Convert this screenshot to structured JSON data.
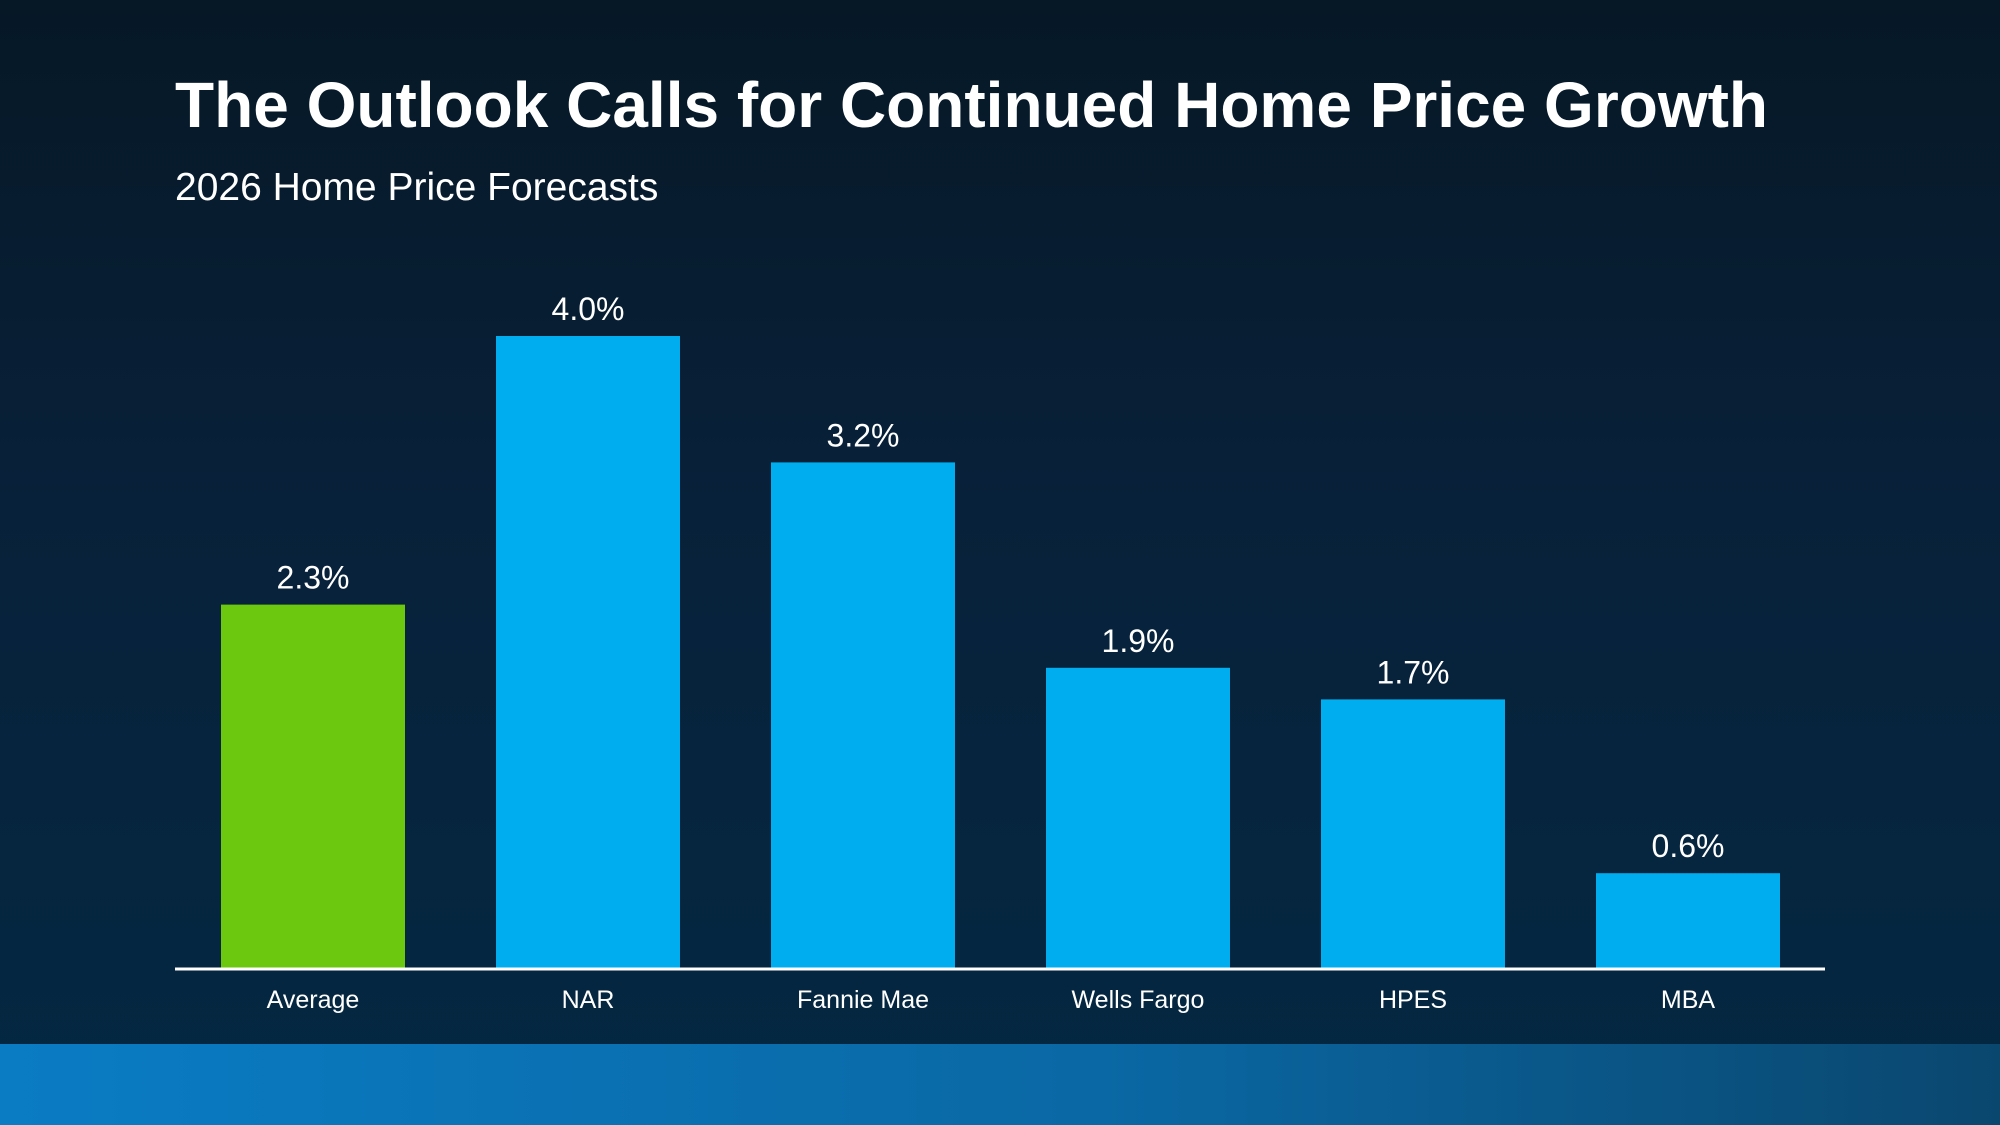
{
  "title": "The Outlook Calls for Continued Home Price Growth",
  "subtitle": "2026 Home Price Forecasts",
  "chart_data": {
    "type": "bar",
    "title": "The Outlook Calls for Continued Home Price Growth",
    "subtitle": "2026 Home Price Forecasts",
    "categories": [
      "Average",
      "NAR",
      "Fannie Mae",
      "Wells Fargo",
      "HPES",
      "MBA"
    ],
    "values": [
      2.3,
      4.0,
      3.2,
      1.9,
      1.7,
      0.6
    ],
    "value_labels": [
      "2.3%",
      "4.0%",
      "3.2%",
      "1.9%",
      "1.7%",
      "0.6%"
    ],
    "bar_colors": [
      "#6cc70f",
      "#00adee",
      "#00adee",
      "#00adee",
      "#00adee",
      "#00adee"
    ],
    "xlabel": "",
    "ylabel": "",
    "ylim": [
      0,
      4.0
    ],
    "grid": false,
    "legend": "none"
  },
  "colors": {
    "highlight": "#6cc70f",
    "bar": "#00adee",
    "text": "#ffffff",
    "axis": "#ffffff"
  }
}
